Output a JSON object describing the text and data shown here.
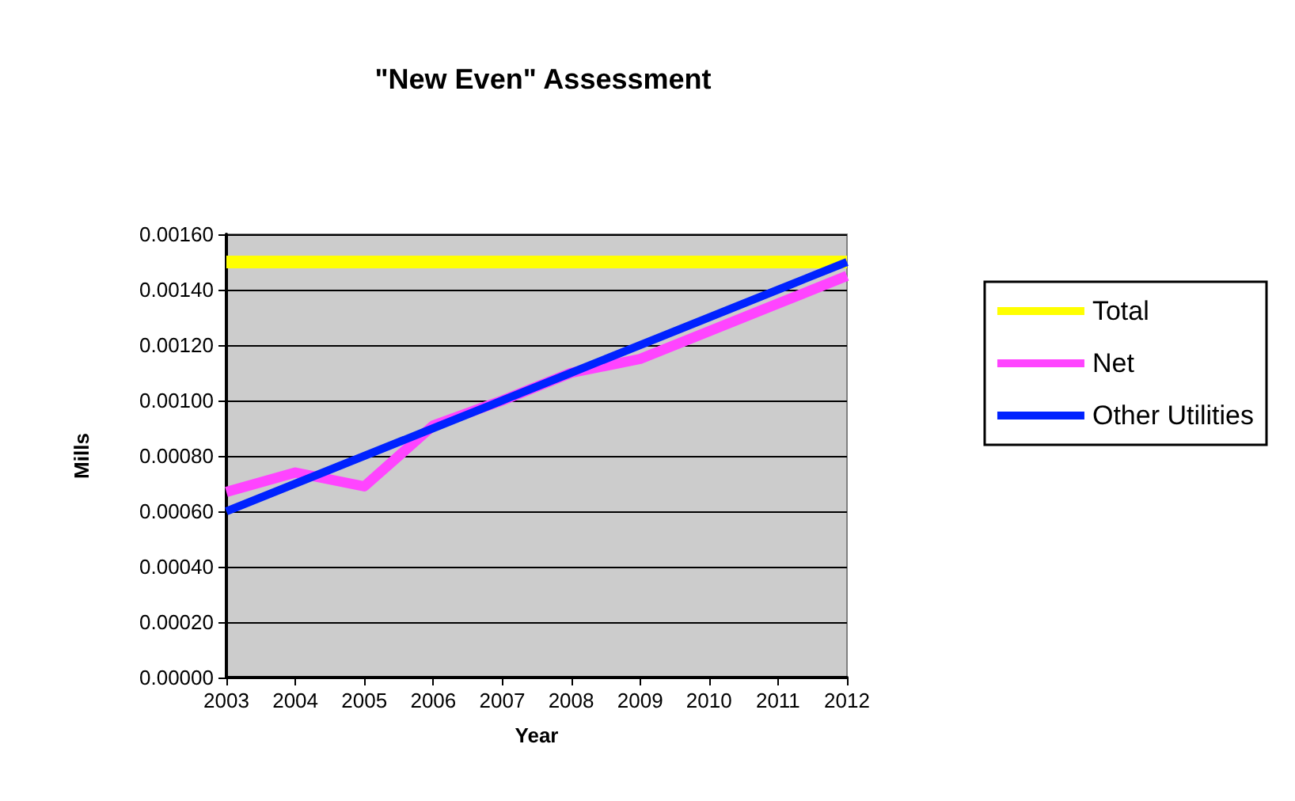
{
  "chart_data": {
    "type": "line",
    "title": "\"New Even\" Assessment",
    "xlabel": "Year",
    "ylabel": "Mills",
    "categories": [
      "2003",
      "2004",
      "2005",
      "2006",
      "2007",
      "2008",
      "2009",
      "2010",
      "2011",
      "2012"
    ],
    "series": [
      {
        "name": "Total",
        "color": "#ffff00",
        "values": [
          0.0015,
          0.0015,
          0.0015,
          0.0015,
          0.0015,
          0.0015,
          0.0015,
          0.0015,
          0.0015,
          0.0015
        ]
      },
      {
        "name": "Net",
        "color": "#ff44ff",
        "values": [
          0.00067,
          0.00074,
          0.00069,
          0.00091,
          0.001,
          0.0011,
          0.00115,
          0.00125,
          0.00135,
          0.00145
        ]
      },
      {
        "name": "Other Utilities",
        "color": "#0022ff",
        "values": [
          0.0006,
          0.0007,
          0.0008,
          0.0009,
          0.001,
          0.0011,
          0.0012,
          0.0013,
          0.0014,
          0.0015
        ]
      }
    ],
    "ylim": [
      0,
      0.0016
    ],
    "yticks": [
      {
        "value": 0,
        "label": "0.00000"
      },
      {
        "value": 0.0002,
        "label": "0.00020"
      },
      {
        "value": 0.0004,
        "label": "0.00040"
      },
      {
        "value": 0.0006,
        "label": "0.00060"
      },
      {
        "value": 0.0008,
        "label": "0.00080"
      },
      {
        "value": 0.001,
        "label": "0.00100"
      },
      {
        "value": 0.0012,
        "label": "0.00120"
      },
      {
        "value": 0.0014,
        "label": "0.00140"
      },
      {
        "value": 0.0016,
        "label": "0.00160"
      }
    ],
    "grid": "y",
    "legend": "right",
    "marker": "none",
    "line_style": "solid"
  }
}
